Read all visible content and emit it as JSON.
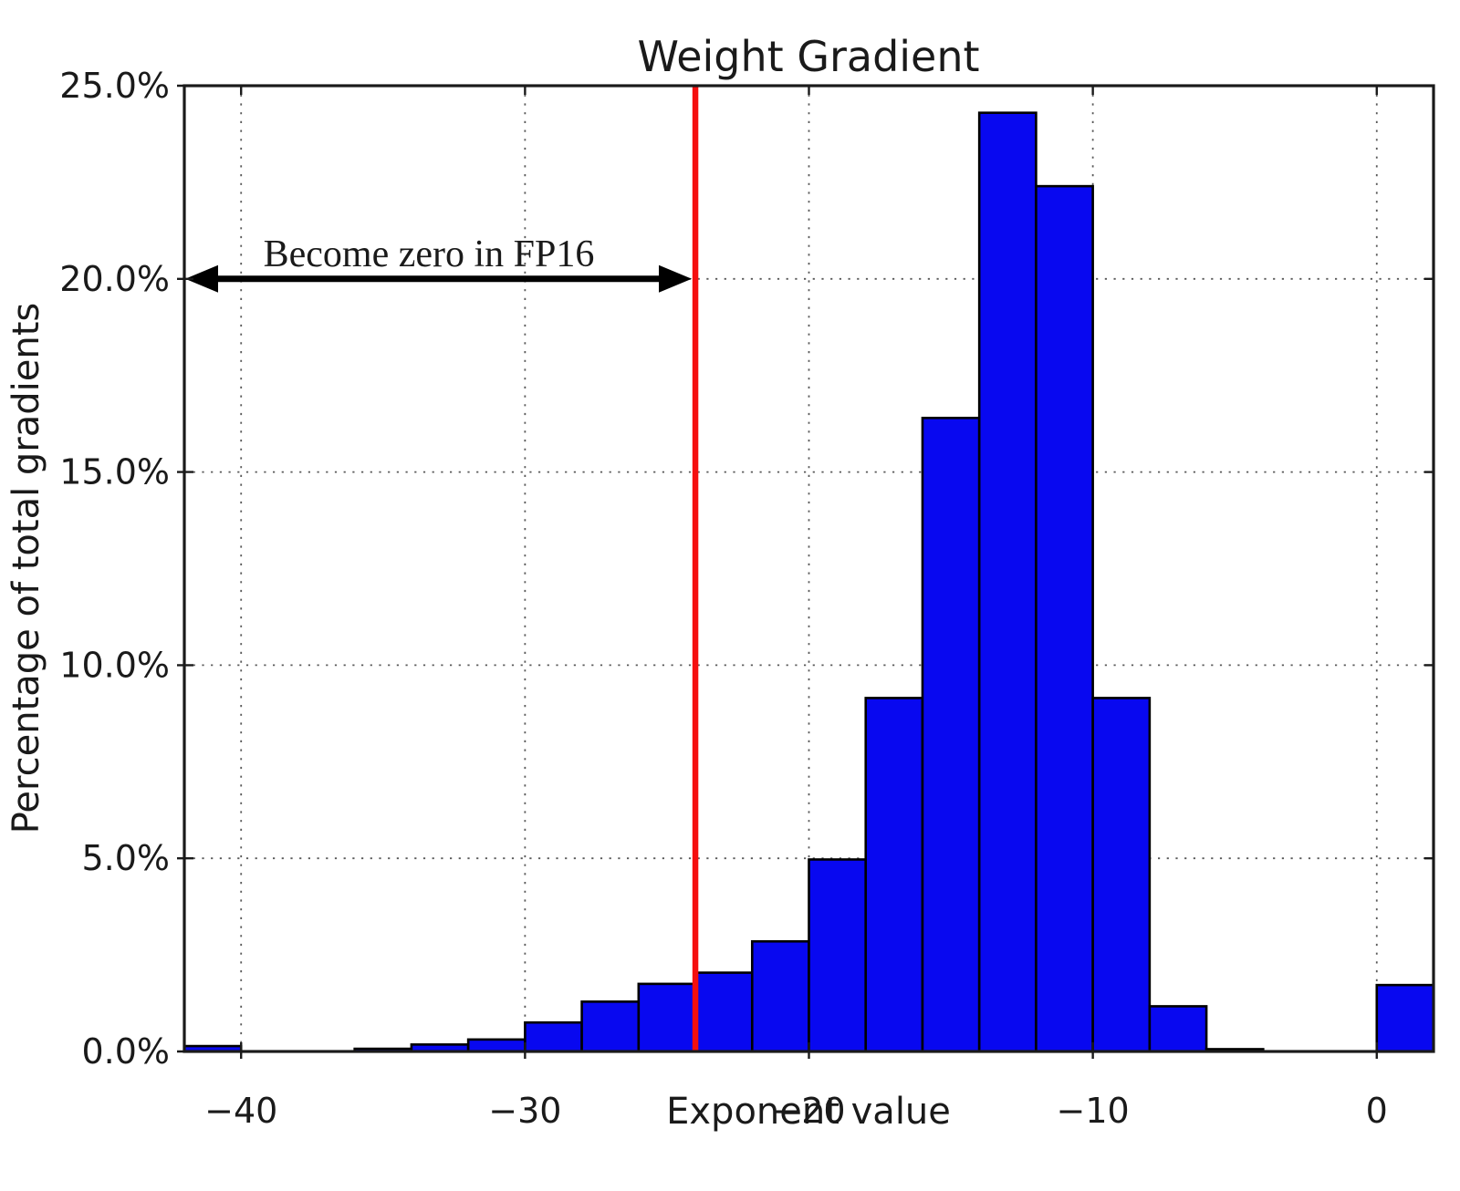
{
  "figure": {
    "background_color": "#ffffff"
  },
  "chart_data": {
    "type": "bar",
    "subtype": "histogram",
    "title": "Weight Gradient",
    "xlabel": "Exponent value",
    "ylabel": "Percentage of total gradients",
    "xlim": [
      -42,
      2
    ],
    "ylim": [
      0,
      25
    ],
    "grid": "dotted",
    "legend": "none",
    "bin_width": 2,
    "bin_edges": [
      -42,
      -40,
      -38,
      -36,
      -34,
      -32,
      -30,
      -28,
      -26,
      -24,
      -22,
      -20,
      -18,
      -16,
      -14,
      -12,
      -10,
      -8,
      -6,
      -4,
      -2,
      0,
      2
    ],
    "values_percent": [
      0.14,
      0.0,
      0.0,
      0.07,
      0.18,
      0.31,
      0.75,
      1.29,
      1.75,
      2.04,
      2.85,
      4.97,
      9.15,
      16.4,
      24.3,
      22.4,
      9.15,
      1.17,
      0.06,
      0.0,
      0.0,
      1.72
    ],
    "x_ticks": [
      -40,
      -30,
      -20,
      -10,
      0
    ],
    "x_tick_labels": [
      "−40",
      "−30",
      "−20",
      "−10",
      "0"
    ],
    "y_ticks": [
      0,
      5,
      10,
      15,
      20,
      25
    ],
    "y_tick_labels": [
      "0.0%",
      "5.0%",
      "10.0%",
      "15.0%",
      "20.0%",
      "25.0%"
    ],
    "bar_fill_color": "#0808f0",
    "bar_edge_color": "#000000",
    "threshold_line": {
      "x": -24,
      "color": "#f50f0f"
    },
    "annotation": {
      "text": "Become zero in FP16",
      "arrow_from_x": -42,
      "arrow_to_x": -24,
      "arrow_y_percent": 20,
      "arrow_color": "#000000"
    }
  }
}
